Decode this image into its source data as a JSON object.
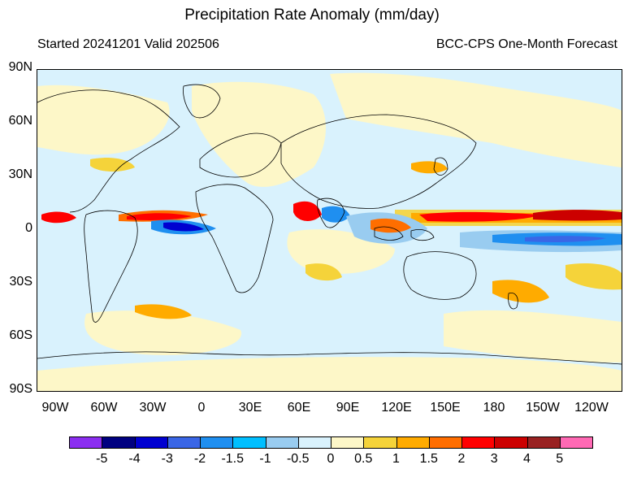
{
  "title": "Precipitation Rate Anomaly (mm/day)",
  "subtitle_left": "Started 20241201  Valid 202506",
  "subtitle_right": "BCC-CPS One-Month Forecast",
  "lat_labels": [
    "90N",
    "60N",
    "30N",
    "0",
    "30S",
    "60S",
    "90S"
  ],
  "lon_labels": [
    "90W",
    "60W",
    "30W",
    "0",
    "30E",
    "60E",
    "90E",
    "120E",
    "150E",
    "180",
    "150W",
    "120W"
  ],
  "colorbar": {
    "colors": [
      "#8b2ef0",
      "#000080",
      "#0000d0",
      "#3a66e6",
      "#1f8ff0",
      "#00bfff",
      "#99ccf0",
      "#d9f2fd",
      "#fdf7c8",
      "#f5d33a",
      "#ffab00",
      "#ff6e00",
      "#ff0000",
      "#cc0000",
      "#992222",
      "#ff69b4"
    ],
    "tick_labels": [
      "-5",
      "-4",
      "-3",
      "-2",
      "-1.5",
      "-1",
      "-0.5",
      "0",
      "0.5",
      "1",
      "1.5",
      "2",
      "3",
      "4",
      "5"
    ]
  },
  "map": {
    "background_color": "#d9f2fd",
    "coastline_color": "#000000"
  }
}
